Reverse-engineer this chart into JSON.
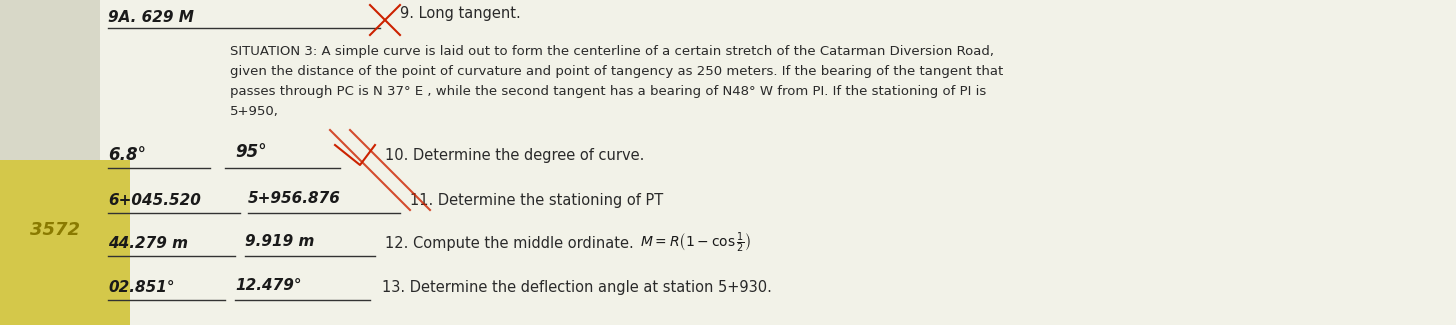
{
  "bg_color": "#e8e8d8",
  "paper_color": "#f0f0e8",
  "yellow_color": "#e8d870",
  "title_answer": "9A. 629 M",
  "label9": "9. Long tangent.",
  "situation_text_line1": "SITUATION 3: A simple curve is laid out to form the centerline of a certain stretch of the Catarman Diversion Road,",
  "situation_text_line2": "given the distance of the point of curvature and point of tangency as 250 meters. If the bearing of the tangent that",
  "situation_text_line3": "passes through PC is N 37° E , while the second tangent has a bearing of N48° W from PI. If the stationing of PI is",
  "situation_text_line4": "5+950,",
  "q10_label": "10. Determine the degree of curve.",
  "q11_label": "11. Determine the stationing of PT",
  "q12_label": "12. Compute the middle ordinate.",
  "q12_formula": "M= R (1 - cos ¹⁄₂)",
  "q13_label": "13. Determine the deflection angle at station 5+930.",
  "ans10_left": "6.8°",
  "ans10_right": "95°",
  "ans11_left": "6+045.520",
  "ans11_right": "5+956.876",
  "ans12_left": "44.279 m",
  "ans12_right": "9.919 m",
  "ans13_left": "02.851°",
  "ans13_right": "12.479°",
  "handwritten_color": "#1a1a1a",
  "printed_color": "#2a2a2a"
}
